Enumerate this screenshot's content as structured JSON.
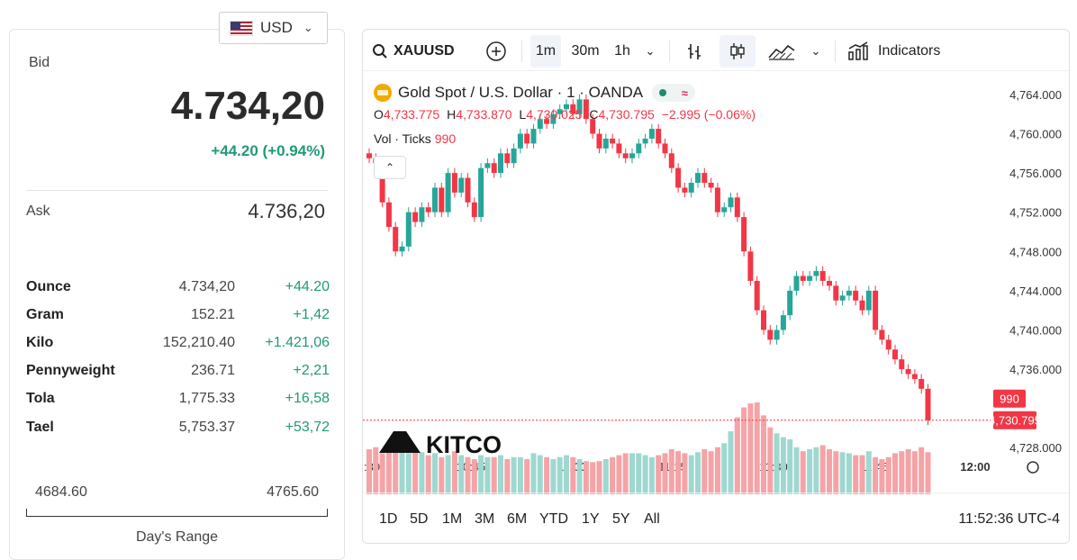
{
  "currency": {
    "code": "USD",
    "flag_icon": "us-flag-icon"
  },
  "bid": {
    "label": "Bid",
    "value": "4.734,20",
    "change": "+44.20 (+0.94%)"
  },
  "ask": {
    "label": "Ask",
    "value": "4.736,20"
  },
  "units": [
    {
      "name": "Ounce",
      "price": "4.734,20",
      "change": "+44.20"
    },
    {
      "name": "Gram",
      "price": "152.21",
      "change": "+1,42"
    },
    {
      "name": "Kilo",
      "price": "152,210.40",
      "change": "+1.421,06"
    },
    {
      "name": "Pennyweight",
      "price": "236.71",
      "change": "+2,21"
    },
    {
      "name": "Tola",
      "price": "1,775.33",
      "change": "+16,58"
    },
    {
      "name": "Tael",
      "price": "5,753.37",
      "change": "+53,72"
    }
  ],
  "days_range": {
    "low": "4684.60",
    "high": "4765.60",
    "label": "Day's Range"
  },
  "toolbar": {
    "symbol": "XAUUSD",
    "intervals": [
      "1m",
      "30m",
      "1h"
    ],
    "active_interval": "1m",
    "indicators_label": "Indicators"
  },
  "legend": {
    "title": "Gold Spot / U.S. Dollar · 1 · OANDA",
    "o_label": "O",
    "o": "4,733.775",
    "h_label": "H",
    "h": "4,733.870",
    "l_label": "L",
    "l": "4,730.025",
    "c_label": "C",
    "c": "4,730.795",
    "change": "−2.995 (−0.06%)",
    "vol_label": "Vol · Ticks",
    "vol": "990"
  },
  "watermark": "KITCO",
  "ranges": [
    "1D",
    "5D",
    "1M",
    "3M",
    "6M",
    "YTD",
    "1Y",
    "5Y",
    "All"
  ],
  "clock": "11:52:36 UTC-4",
  "colors": {
    "up": "#26a69a",
    "down": "#f23645",
    "vol_up": "#9ed8d0",
    "vol_down": "#f5a3a6",
    "change_green": "#1f9a78"
  },
  "chart_data": {
    "type": "candlestick",
    "x_ticks": [
      ":30",
      "10:45",
      "11:00",
      "11:15",
      "11:30",
      "11:45",
      "12:00"
    ],
    "y_ticks": [
      "4,768.000",
      "4,764.000",
      "4,760.000",
      "4,756.000",
      "4,752.000",
      "4,748.000",
      "4,744.000",
      "4,740.000",
      "4,736.000",
      "4,728.000"
    ],
    "ylim": [
      4726.0,
      4769.5
    ],
    "last_price": "4,730.795",
    "last_volume": "990",
    "closes": [
      4757.5,
      4757.0,
      4753.0,
      4750.5,
      4748.0,
      4748.5,
      4752.0,
      4751.0,
      4752.5,
      4752.0,
      4754.5,
      4752.0,
      4756.0,
      4754.0,
      4755.5,
      4753.0,
      4751.5,
      4756.5,
      4757.0,
      4756.0,
      4758.0,
      4757.0,
      4758.5,
      4760.0,
      4759.0,
      4760.5,
      4761.5,
      4761.0,
      4762.0,
      4762.5,
      4763.0,
      4762.0,
      4763.5,
      4761.5,
      4760.0,
      4758.5,
      4759.5,
      4759.0,
      4758.0,
      4757.5,
      4758.0,
      4759.0,
      4759.5,
      4760.5,
      4759.0,
      4758.0,
      4756.5,
      4754.5,
      4754.0,
      4755.0,
      4756.0,
      4755.0,
      4754.5,
      4752.0,
      4752.5,
      4753.5,
      4751.5,
      4748.0,
      4745.0,
      4742.0,
      4740.0,
      4739.0,
      4740.0,
      4741.5,
      4744.0,
      4745.5,
      4745.0,
      4745.5,
      4746.0,
      4745.0,
      4744.5,
      4743.0,
      4743.5,
      4744.0,
      4743.0,
      4742.0,
      4744.0,
      4740.0,
      4739.0,
      4738.0,
      4737.0,
      4736.0,
      4735.5,
      4735.0,
      4734.0,
      4730.8
    ],
    "volumes": [
      48,
      50,
      44,
      45,
      48,
      46,
      44,
      45,
      45,
      42,
      44,
      40,
      42,
      46,
      42,
      40,
      38,
      42,
      40,
      40,
      42,
      38,
      40,
      40,
      38,
      44,
      42,
      40,
      38,
      40,
      42,
      40,
      38,
      36,
      35,
      36,
      38,
      40,
      42,
      44,
      44,
      44,
      42,
      40,
      42,
      44,
      48,
      46,
      44,
      42,
      45,
      48,
      46,
      50,
      54,
      66,
      80,
      90,
      94,
      95,
      82,
      70,
      64,
      60,
      58,
      50,
      46,
      48,
      50,
      52,
      48,
      46,
      45,
      44,
      42,
      42,
      46,
      40,
      38,
      40,
      44,
      46,
      48,
      46,
      50,
      45
    ]
  }
}
